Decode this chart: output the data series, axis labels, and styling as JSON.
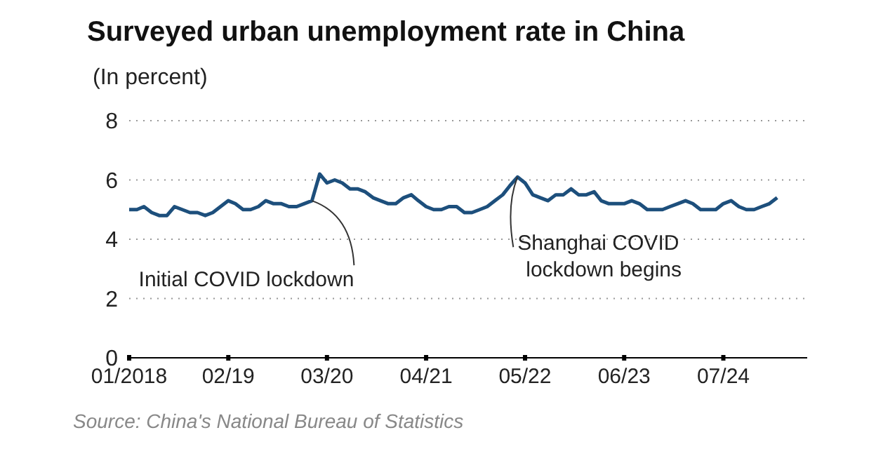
{
  "chart_data": {
    "type": "line",
    "title": "Surveyed urban unemployment rate in China",
    "subtitle": "(In percent)",
    "x": [
      "2018-01",
      "2018-02",
      "2018-03",
      "2018-04",
      "2018-05",
      "2018-06",
      "2018-07",
      "2018-08",
      "2018-09",
      "2018-10",
      "2018-11",
      "2018-12",
      "2019-01",
      "2019-02",
      "2019-03",
      "2019-04",
      "2019-05",
      "2019-06",
      "2019-07",
      "2019-08",
      "2019-09",
      "2019-10",
      "2019-11",
      "2019-12",
      "2020-01",
      "2020-02",
      "2020-03",
      "2020-04",
      "2020-05",
      "2020-06",
      "2020-07",
      "2020-08",
      "2020-09",
      "2020-10",
      "2020-11",
      "2020-12",
      "2021-01",
      "2021-02",
      "2021-03",
      "2021-04",
      "2021-05",
      "2021-06",
      "2021-07",
      "2021-08",
      "2021-09",
      "2021-10",
      "2021-11",
      "2021-12",
      "2022-01",
      "2022-02",
      "2022-03",
      "2022-04",
      "2022-05",
      "2022-06",
      "2022-07",
      "2022-08",
      "2022-09",
      "2022-10",
      "2022-11",
      "2022-12",
      "2023-01",
      "2023-02",
      "2023-03",
      "2023-04",
      "2023-05",
      "2023-06",
      "2023-07",
      "2023-08",
      "2023-09",
      "2023-10",
      "2023-11",
      "2023-12",
      "2024-01",
      "2024-02",
      "2024-03",
      "2024-04",
      "2024-05",
      "2024-06",
      "2024-07",
      "2024-08",
      "2024-09",
      "2024-10",
      "2024-11",
      "2024-12",
      "2025-01",
      "2025-02"
    ],
    "series": [
      {
        "color": "#1d4f7c",
        "values": [
          5.0,
          5.0,
          5.1,
          4.9,
          4.8,
          4.8,
          5.1,
          5.0,
          4.9,
          4.9,
          4.8,
          4.9,
          5.1,
          5.3,
          5.2,
          5.0,
          5.0,
          5.1,
          5.3,
          5.2,
          5.2,
          5.1,
          5.1,
          5.2,
          5.3,
          6.2,
          5.9,
          6.0,
          5.9,
          5.7,
          5.7,
          5.6,
          5.4,
          5.3,
          5.2,
          5.2,
          5.4,
          5.5,
          5.3,
          5.1,
          5.0,
          5.0,
          5.1,
          5.1,
          4.9,
          4.9,
          5.0,
          5.1,
          5.3,
          5.5,
          5.8,
          6.1,
          5.9,
          5.5,
          5.4,
          5.3,
          5.5,
          5.5,
          5.7,
          5.5,
          5.5,
          5.6,
          5.3,
          5.2,
          5.2,
          5.2,
          5.3,
          5.2,
          5.0,
          5.0,
          5.0,
          5.1,
          5.2,
          5.3,
          5.2,
          5.0,
          5.0,
          5.0,
          5.2,
          5.3,
          5.1,
          5.0,
          5.0,
          5.1,
          5.2,
          5.4
        ]
      }
    ],
    "xlim": [
      "2018-01",
      "2025-06"
    ],
    "xticks": [
      {
        "value": "2018-01",
        "label": "01/2018"
      },
      {
        "value": "2019-02",
        "label": "02/19"
      },
      {
        "value": "2020-03",
        "label": "03/20"
      },
      {
        "value": "2021-04",
        "label": "04/21"
      },
      {
        "value": "2022-05",
        "label": "05/22"
      },
      {
        "value": "2023-06",
        "label": "06/23"
      },
      {
        "value": "2024-07",
        "label": "07/24"
      }
    ],
    "ylim": [
      0,
      8
    ],
    "yticks": [
      0,
      2,
      4,
      6,
      8
    ],
    "grid": "y",
    "marker": "none",
    "line_style": "solid",
    "annotations": [
      {
        "text": "Initial COVID lockdown",
        "x": "2020-01",
        "y": 5.3
      },
      {
        "text": "Shanghai COVID lockdown begins",
        "x": "2022-04",
        "y": 6.1
      },
      "Source: China's National Bureau of Statistics"
    ]
  }
}
